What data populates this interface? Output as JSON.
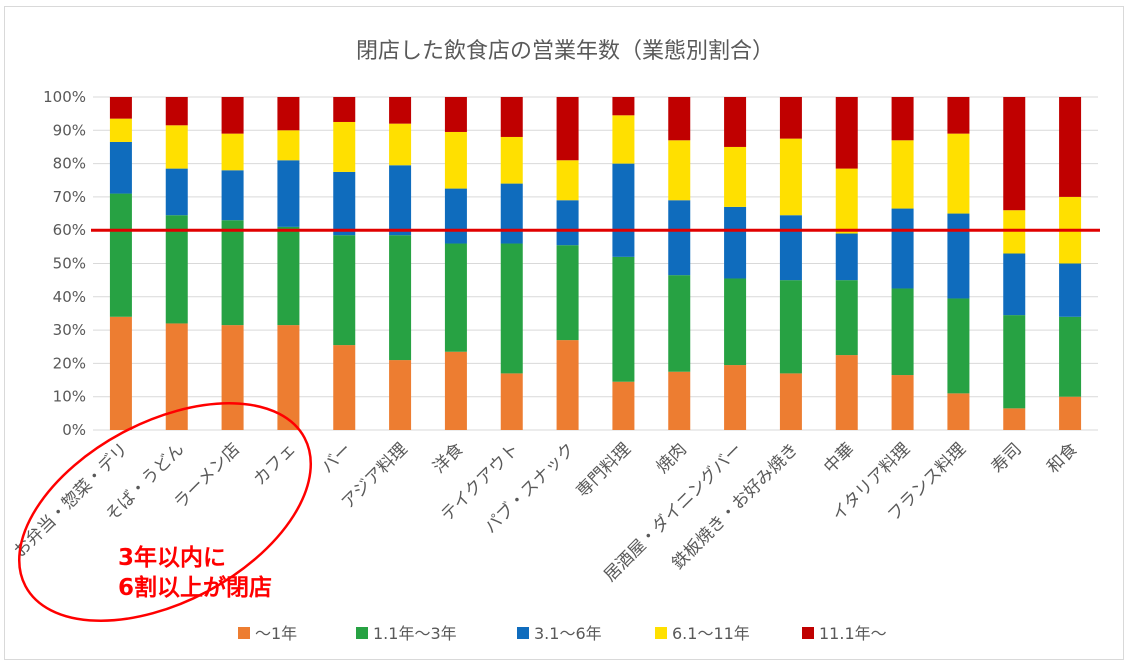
{
  "chart_data": {
    "type": "bar",
    "stacked": true,
    "percent": true,
    "title": "閉店した飲食店の営業年数（業態別割合）",
    "xlabel": "",
    "ylabel": "",
    "ylim": [
      0,
      100
    ],
    "y_ticks": [
      "0%",
      "10%",
      "20%",
      "30%",
      "40%",
      "50%",
      "60%",
      "70%",
      "80%",
      "90%",
      "100%"
    ],
    "legend_position": "bottom",
    "categories": [
      "お弁当・惣菜・デリ",
      "そば・うどん",
      "ラーメン店",
      "カフェ",
      "バー",
      "アジア料理",
      "洋食",
      "テイクアウト",
      "パブ・スナック",
      "専門料理",
      "焼肉",
      "居酒屋・ダイニングバー",
      "鉄板焼き・お好み焼き",
      "中華",
      "イタリア料理",
      "フランス料理",
      "寿司",
      "和食"
    ],
    "series": [
      {
        "name": "〜1年",
        "color": "#ED7D31",
        "values": [
          34,
          32,
          31.5,
          31.5,
          25.5,
          21,
          23.5,
          17,
          27,
          14.5,
          17.5,
          19.5,
          17,
          22.5,
          16.5,
          11,
          6.5,
          10
        ]
      },
      {
        "name": "1.1年〜3年",
        "color": "#27A243",
        "values": [
          37,
          32.5,
          31.5,
          29.5,
          33,
          37.5,
          32.5,
          39,
          28.5,
          37.5,
          29,
          26,
          28,
          22.5,
          26,
          28.5,
          28,
          24
        ]
      },
      {
        "name": "3.1〜6年",
        "color": "#0F6CBD",
        "values": [
          15.5,
          14,
          15,
          20,
          19,
          21,
          16.5,
          18,
          13.5,
          28,
          22.5,
          21.5,
          19.5,
          14,
          24,
          25.5,
          18.5,
          16
        ]
      },
      {
        "name": "6.1〜11年",
        "color": "#FFE000",
        "values": [
          7,
          13,
          11,
          9,
          15,
          12.5,
          17,
          14,
          12,
          14.5,
          18,
          18,
          23,
          19.5,
          20.5,
          24,
          13,
          20
        ]
      },
      {
        "name": "11.1年〜",
        "color": "#C00000",
        "values": [
          6.5,
          8.5,
          11,
          10,
          7.5,
          8,
          10.5,
          12,
          19,
          5.5,
          13,
          15,
          12.5,
          21.5,
          13,
          11,
          34,
          30
        ]
      }
    ],
    "reference_line": {
      "value": 60,
      "color": "#E00000"
    },
    "annotation": {
      "lines": [
        "3年以内に",
        "6割以上が閉店"
      ],
      "color": "#FF0000"
    }
  }
}
